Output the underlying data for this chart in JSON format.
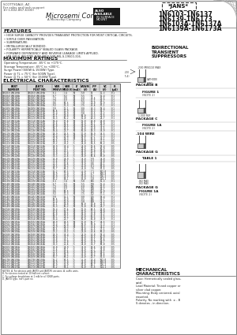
{
  "title_lines": [
    "1N6103-1N6137",
    "1N6139-1N6173",
    "1N6103A-1N6137A",
    "1N6139A-1N6173A"
  ],
  "jans_label": "*JANS*",
  "company": "Microsemi Corp.",
  "subtitle_lines": [
    "BIDIRECTIONAL",
    "TRANSIENT",
    "SUPPRESSORS"
  ],
  "features_title": "FEATURES",
  "features": [
    "HIGH SURGE CAPACITY PROVIDES TRANSIENT PROTECTION FOR MOST CRITICAL CIRCUITS.",
    "SIMPLE OVER PASSIVATION.",
    "SUBMINIATURE.",
    "METALLURGICALLY BONDED.",
    "POLARITY HERMETICALLY SEALED GLASS PACKAGE.",
    "FORWARD DEPENDENCY AND REVERSE LEAKAGE LIMITS APPLIED.",
    "JAN-S/FLS-JAN TYPE AVAILABLE FOR MIL-S-19500-316."
  ],
  "max_ratings_title": "MAXIMUM RATINGS",
  "max_ratings": [
    "Operating Temperature: -65°C to +175°C.",
    "Storage Temperature: -65°C to +200°C.",
    "Surge Power (500W & 1500W) Type.",
    "Power @ TL = 75°C (for 500W Type).",
    "Power @ TL = 50°C (for 1500W Type)."
  ],
  "elec_char_title": "ELECTRICAL CHARACTERISTICS",
  "header_labels": [
    [
      "PART",
      "NUMBER"
    ],
    [
      "JANTX",
      "PART NO."
    ],
    [
      "VBR",
      "MIN(V)"
    ],
    [
      "VBR",
      "MAX(V)"
    ],
    [
      "IT",
      "(mA)"
    ],
    [
      "VRWM",
      "(V)"
    ],
    [
      "IPP",
      "(A)"
    ],
    [
      "VC",
      "(V)"
    ],
    [
      "IR",
      "(µA)"
    ]
  ],
  "table_rows": [
    [
      "1N6103/1N6103A",
      "1N6103/1N6103A",
      "6.1",
      "7.4",
      "10",
      "5.0",
      "55",
      "11.3",
      "0.1"
    ],
    [
      "1N6104/1N6104A",
      "1N6104/1N6104A",
      "6.7",
      "8.2",
      "10",
      "5.5",
      "57",
      "12.4",
      "0.1"
    ],
    [
      "1N6105/1N6105A",
      "1N6105/1N6105A",
      "7.3",
      "8.9",
      "10",
      "6.0",
      "48.6",
      "13.5",
      "0.1"
    ],
    [
      "1N6106/1N6106A",
      "1N6106/1N6106A",
      "7.9",
      "9.7",
      "10",
      "6.5",
      "46.1",
      "14.7",
      "0.1"
    ],
    [
      "1N6107/1N6107A",
      "1N6107/1N6107A",
      "8.6",
      "10.5",
      "10",
      "7.0",
      "44.0",
      "15.9",
      "0.1"
    ],
    [
      "1N6108/1N6108A",
      "1N6108/1N6108A",
      "9.2",
      "11.3",
      "10",
      "7.5",
      "40.6",
      "17.1",
      "0.1"
    ],
    [
      "1N6109/1N6109A",
      "1N6109/1N6109A",
      "9.9",
      "12.1",
      "10",
      "8.0",
      "38.3",
      "18.4",
      "0.1"
    ],
    [
      "1N6110/1N6110A",
      "1N6110/1N6110A",
      "10.6",
      "12.9",
      "10",
      "8.5",
      "35.3",
      "19.7",
      "0.1"
    ],
    [
      "1N6111/1N6111A",
      "1N6111/1N6111A",
      "11.4",
      "13.9",
      "10",
      "9.0",
      "33.5",
      "21.2",
      "0.1"
    ],
    [
      "1N6112/1N6112A",
      "1N6112/1N6112A",
      "12.1",
      "14.8",
      "10",
      "10.0",
      "31.3",
      "22.5",
      "0.1"
    ],
    [
      "1N6113/1N6113A",
      "1N6113/1N6113A",
      "13.3",
      "16.2",
      "10",
      "11.0",
      "28.3",
      "24.7",
      "0.1"
    ],
    [
      "1N6114/1N6114A",
      "1N6114/1N6114A",
      "14.4",
      "17.6",
      "10",
      "12.0",
      "26.8",
      "26.8",
      "0.1"
    ],
    [
      "1N6115/1N6115A",
      "1N6115/1N6115A",
      "15.6",
      "19.1",
      "10",
      "13.0",
      "25.1",
      "29.0",
      "0.1"
    ],
    [
      "1N6116/1N6116A",
      "1N6116/1N6116A",
      "16.8",
      "20.5",
      "10",
      "14.0",
      "23.6",
      "31.2",
      "0.1"
    ],
    [
      "1N6117/1N6117A",
      "1N6117/1N6117A",
      "18.1",
      "22.1",
      "10",
      "15.0",
      "21.8",
      "33.5",
      "0.1"
    ],
    [
      "1N6118/1N6118A",
      "1N6118/1N6118A",
      "19.4",
      "23.7",
      "10",
      "16.0",
      "20.3",
      "35.9",
      "0.1"
    ],
    [
      "1N6119/1N6119A",
      "1N6119/1N6119A",
      "20.9",
      "25.5",
      "10",
      "17.0",
      "18.9",
      "38.5",
      "0.1"
    ],
    [
      "1N6120/1N6120A",
      "1N6120/1N6120A",
      "22.4",
      "27.4",
      "10",
      "18.0",
      "17.7",
      "41.3",
      "0.1"
    ],
    [
      "1N6121/1N6121A",
      "1N6121/1N6121A",
      "23.9",
      "29.3",
      "10",
      "19.5",
      "16.5",
      "44.1",
      "0.1"
    ],
    [
      "1N6122/1N6122A",
      "1N6122/1N6122A",
      "25.5",
      "31.2",
      "5",
      "20.0",
      "15.5",
      "47.1",
      "0.5"
    ],
    [
      "1N6123/1N6123A",
      "1N6123/1N6123A",
      "27.2",
      "33.2",
      "5",
      "22.0",
      "14.5",
      "50.2",
      "0.5"
    ],
    [
      "1N6124/1N6124A",
      "1N6124/1N6124A",
      "28.9",
      "35.4",
      "5",
      "24.0",
      "13.6",
      "53.4",
      "0.5"
    ],
    [
      "1N6125/1N6125A",
      "1N6125/1N6125A",
      "30.8",
      "37.7",
      "5",
      "25.0",
      "12.9",
      "56.9",
      "0.5"
    ],
    [
      "1N6126/1N6126A",
      "1N6126/1N6126A",
      "32.8",
      "40.1",
      "5",
      "26.0",
      "12.0",
      "60.6",
      "0.5"
    ],
    [
      "1N6127/1N6127A",
      "1N6127/1N6127A",
      "35.0",
      "42.8",
      "5",
      "28.0",
      "11.3",
      "64.7",
      "0.5"
    ],
    [
      "1N6128/1N6128A",
      "1N6128/1N6128A",
      "37.3",
      "45.6",
      "5",
      "30.0",
      "10.6",
      "69.0",
      "0.5"
    ],
    [
      "1N6129/1N6129A",
      "1N6129/1N6129A",
      "40.0",
      "48.9",
      "5",
      "33.0",
      "9.9",
      "74.0",
      "0.5"
    ],
    [
      "1N6130/1N6130A",
      "1N6130/1N6130A",
      "42.6",
      "52.1",
      "5",
      "35.0",
      "9.2",
      "78.8",
      "0.5"
    ],
    [
      "1N6131/1N6131A",
      "1N6131/1N6131A",
      "45.5",
      "55.6",
      "5",
      "37.0",
      "8.6",
      "84.1",
      "0.5"
    ],
    [
      "1N6132/1N6132A",
      "1N6132/1N6132A",
      "48.5",
      "59.2",
      "5",
      "40.0",
      "8.1",
      "89.6",
      "0.5"
    ],
    [
      "1N6133/1N6133A",
      "1N6133/1N6133A",
      "51.7",
      "63.2",
      "5",
      "43.0",
      "7.6",
      "95.5",
      "0.5"
    ],
    [
      "1N6134/1N6134A",
      "1N6134/1N6134A",
      "55.2",
      "67.5",
      "5",
      "45.0",
      "7.1",
      "102.0",
      "0.5"
    ],
    [
      "1N6135/1N6135A",
      "1N6135/1N6135A",
      "58.9",
      "72.0",
      "5",
      "48.0",
      "6.7",
      "108.8",
      "0.5"
    ],
    [
      "1N6136/1N6136A",
      "1N6136/1N6136A",
      "62.9",
      "76.9",
      "5",
      "51.0",
      "6.2",
      "116.2",
      "0.5"
    ],
    [
      "1N6137/1N6137A",
      "1N6137/1N6137A",
      "67.2",
      "82.1",
      "5",
      "55.0",
      "5.8",
      "124.1",
      "0.5"
    ],
    [
      "1N6139/1N6139A",
      "1N6139/1N6139A",
      "6.1",
      "7.4",
      "10",
      "5.0",
      "165",
      "11.3",
      "0.1"
    ],
    [
      "1N6140/1N6140A",
      "1N6140/1N6140A",
      "6.7",
      "8.2",
      "10",
      "5.5",
      "170",
      "12.4",
      "0.1"
    ],
    [
      "1N6141/1N6141A",
      "1N6141/1N6141A",
      "7.3",
      "8.9",
      "10",
      "6.0",
      "146",
      "13.5",
      "0.1"
    ],
    [
      "1N6142/1N6142A",
      "1N6142/1N6142A",
      "7.9",
      "9.7",
      "10",
      "6.5",
      "138",
      "14.7",
      "0.1"
    ],
    [
      "1N6143/1N6143A",
      "1N6143/1N6143A",
      "8.6",
      "10.5",
      "10",
      "7.0",
      "132",
      "15.9",
      "0.1"
    ],
    [
      "1N6144/1N6144A",
      "1N6144/1N6144A",
      "9.2",
      "11.3",
      "10",
      "7.5",
      "122",
      "17.1",
      "0.1"
    ],
    [
      "1N6145/1N6145A",
      "1N6145/1N6145A",
      "9.9",
      "12.1",
      "10",
      "8.0",
      "115",
      "18.4",
      "0.1"
    ],
    [
      "1N6146/1N6146A",
      "1N6146/1N6146A",
      "10.6",
      "12.9",
      "10",
      "8.5",
      "106",
      "19.7",
      "0.1"
    ],
    [
      "1N6147/1N6147A",
      "1N6147/1N6147A",
      "11.4",
      "13.9",
      "10",
      "9.0",
      "100",
      "21.2",
      "0.1"
    ],
    [
      "1N6148/1N6148A",
      "1N6148/1N6148A",
      "12.1",
      "14.8",
      "10",
      "10.0",
      "94.0",
      "22.5",
      "0.1"
    ],
    [
      "1N6149/1N6149A",
      "1N6149/1N6149A",
      "13.3",
      "16.2",
      "10",
      "11.0",
      "85.0",
      "24.7",
      "0.1"
    ],
    [
      "1N6150/1N6150A",
      "1N6150/1N6150A",
      "14.4",
      "17.6",
      "10",
      "12.0",
      "80.5",
      "26.8",
      "0.1"
    ],
    [
      "1N6151/1N6151A",
      "1N6151/1N6151A",
      "15.6",
      "19.1",
      "10",
      "13.0",
      "75.4",
      "29.0",
      "0.1"
    ],
    [
      "1N6152/1N6152A",
      "1N6152/1N6152A",
      "16.8",
      "20.5",
      "10",
      "14.0",
      "70.8",
      "31.2",
      "0.1"
    ],
    [
      "1N6153/1N6153A",
      "1N6153/1N6153A",
      "18.1",
      "22.1",
      "10",
      "15.0",
      "65.5",
      "33.5",
      "0.1"
    ],
    [
      "1N6154/1N6154A",
      "1N6154/1N6154A",
      "19.4",
      "23.7",
      "10",
      "16.0",
      "61.0",
      "35.9",
      "0.1"
    ],
    [
      "1N6155/1N6155A",
      "1N6155/1N6155A",
      "20.9",
      "25.5",
      "10",
      "17.0",
      "56.7",
      "38.5",
      "0.1"
    ],
    [
      "1N6156/1N6156A",
      "1N6156/1N6156A",
      "22.4",
      "27.4",
      "10",
      "18.0",
      "53.0",
      "41.3",
      "0.1"
    ],
    [
      "1N6157/1N6157A",
      "1N6157/1N6157A",
      "23.9",
      "29.3",
      "10",
      "19.5",
      "49.6",
      "44.1",
      "0.1"
    ],
    [
      "1N6158/1N6158A",
      "1N6158/1N6158A",
      "25.5",
      "31.2",
      "5",
      "20.0",
      "46.5",
      "47.1",
      "0.5"
    ],
    [
      "1N6159/1N6159A",
      "1N6159/1N6159A",
      "27.2",
      "33.2",
      "5",
      "22.0",
      "43.6",
      "50.2",
      "0.5"
    ],
    [
      "1N6160/1N6160A",
      "1N6160/1N6160A",
      "28.9",
      "35.4",
      "5",
      "24.0",
      "40.8",
      "53.4",
      "0.5"
    ],
    [
      "1N6161/1N6161A",
      "1N6161/1N6161A",
      "30.8",
      "37.7",
      "5",
      "25.0",
      "38.5",
      "56.9",
      "0.5"
    ],
    [
      "1N6162/1N6162A",
      "1N6162/1N6162A",
      "32.8",
      "40.1",
      "5",
      "26.0",
      "36.1",
      "60.6",
      "0.5"
    ],
    [
      "1N6163/1N6163A",
      "1N6163/1N6163A",
      "35.0",
      "42.8",
      "5",
      "28.0",
      "33.9",
      "64.7",
      "0.5"
    ],
    [
      "1N6164/1N6164A",
      "1N6164/1N6164A",
      "37.3",
      "45.6",
      "5",
      "30.0",
      "31.7",
      "69.0",
      "0.5"
    ],
    [
      "1N6165/1N6165A",
      "1N6165/1N6165A",
      "40.0",
      "48.9",
      "5",
      "33.0",
      "29.6",
      "74.0",
      "0.5"
    ],
    [
      "1N6166/1N6166A",
      "1N6166/1N6166A",
      "42.6",
      "52.1",
      "5",
      "35.0",
      "27.7",
      "78.8",
      "0.5"
    ],
    [
      "1N6167/1N6167A",
      "1N6167/1N6167A",
      "45.5",
      "55.6",
      "5",
      "37.0",
      "25.9",
      "84.1",
      "0.5"
    ],
    [
      "1N6168/1N6168A",
      "1N6168/1N6168A",
      "48.5",
      "59.2",
      "5",
      "40.0",
      "24.2",
      "89.6",
      "0.5"
    ],
    [
      "1N6169/1N6169A",
      "1N6169/1N6169A",
      "51.7",
      "63.2",
      "5",
      "43.0",
      "22.7",
      "95.5",
      "0.5"
    ],
    [
      "1N6170/1N6170A",
      "1N6170/1N6170A",
      "55.2",
      "67.5",
      "5",
      "45.0",
      "21.4",
      "102.0",
      "0.5"
    ],
    [
      "1N6171/1N6171A",
      "1N6171/1N6171A",
      "58.9",
      "72.0",
      "5",
      "48.0",
      "20.0",
      "108.8",
      "0.5"
    ],
    [
      "1N6172/1N6172A",
      "1N6172/1N6172A",
      "62.9",
      "76.9",
      "5",
      "51.0",
      "18.7",
      "116.2",
      "0.5"
    ],
    [
      "1N6173/1N6173A",
      "1N6173/1N6173A",
      "67.2",
      "82.1",
      "5",
      "55.0",
      "17.5",
      "124.1",
      "0.5"
    ]
  ],
  "notes": [
    "NOTES: A. For devices with JANTX and JANTXV versions, A. suffix units.",
    "B. For devices tested at 10 mA test current.",
    "C. For voltage breakdown at 1 mA for all 500W parts.",
    "D. JANTX type, mfr's part no."
  ],
  "mech_title": "MECHANICAL",
  "mech_title2": "CHARACTERISTICS",
  "mech_lines": [
    "Case: Hermetically sealed glass,",
    "axial.",
    "Lead Material: Tinned copper or",
    "silver clad copper.",
    "Mounting: Body centered, axial",
    "mounted.",
    "Polarity: No marking with  ± - B",
    "S denotes - in direction."
  ],
  "pkg_b_label": "PACKAGE B",
  "pkg_c_label": "PACKAGE C",
  "pkg_g_label": "PACKAGE G",
  "fig1_label": "FIGURE 1",
  "fig1a_label": "FIGURE 1A",
  "note2": "(NOTE 2)",
  "background_color": "#f5f3ef",
  "text_color": "#1a1a1a"
}
